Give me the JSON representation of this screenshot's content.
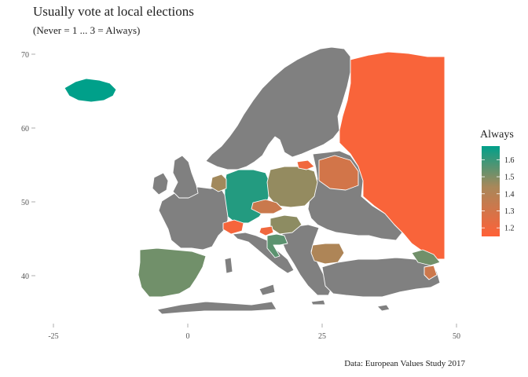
{
  "title": "Usually vote at local elections",
  "subtitle": "(Never = 1 ... 3 = Always)",
  "caption": "Data: European Values Study 2017",
  "legend": {
    "title": "Always",
    "ticks": [
      "1.6",
      "1.5",
      "1.4",
      "1.3",
      "1.2"
    ],
    "tick_values": [
      1.6,
      1.5,
      1.4,
      1.3,
      1.2
    ],
    "range": [
      1.15,
      1.68
    ],
    "color_low": "#ff6138",
    "color_mid": "#a8885a",
    "color_high": "#00a08a"
  },
  "axes": {
    "x_ticks": [
      "-25",
      "0",
      "25",
      "50"
    ],
    "x_values": [
      -25,
      0,
      25,
      50
    ],
    "y_ticks": [
      "70",
      "60",
      "50",
      "40"
    ],
    "y_values": [
      70,
      60,
      50,
      40
    ],
    "xlim": [
      -30,
      52
    ],
    "ylim": [
      33,
      72
    ]
  },
  "colors": {
    "no_data": "#808080",
    "land_border": "#ffffff",
    "background": "#ffffff"
  },
  "chart_data": {
    "type": "choropleth",
    "measure": "Usually vote at local elections",
    "scale": "Never = 1 ... 3 = Always",
    "regions": [
      {
        "name": "Iceland",
        "value": 1.68
      },
      {
        "name": "Germany",
        "value": 1.63
      },
      {
        "name": "Spain",
        "value": 1.52
      },
      {
        "name": "Poland",
        "value": 1.47
      },
      {
        "name": "Netherlands",
        "value": 1.45
      },
      {
        "name": "Hungary",
        "value": 1.48
      },
      {
        "name": "Croatia",
        "value": 1.55
      },
      {
        "name": "Bulgaria",
        "value": 1.42
      },
      {
        "name": "Georgia",
        "value": 1.52
      },
      {
        "name": "Czechia",
        "value": 1.33
      },
      {
        "name": "Belarus",
        "value": 1.3
      },
      {
        "name": "Armenia",
        "value": 1.32
      },
      {
        "name": "Lithuania",
        "value": 1.2
      },
      {
        "name": "Switzerland",
        "value": 1.18
      },
      {
        "name": "Slovenia",
        "value": 1.2
      },
      {
        "name": "Russia",
        "value": 1.17
      }
    ]
  }
}
